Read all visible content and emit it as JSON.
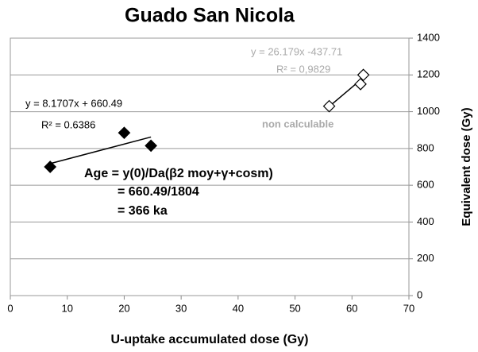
{
  "chart_data": {
    "type": "scatter",
    "title": "Guado San Nicola",
    "x_label": "U-uptake accumulated dose (Gy)",
    "y_label": "Equivalent dose (Gy)",
    "xlim": [
      0,
      70
    ],
    "xticks": [
      0,
      10,
      20,
      30,
      40,
      50,
      60,
      70
    ],
    "ylim": [
      0,
      1400
    ],
    "yticks": [
      0,
      200,
      400,
      600,
      800,
      1000,
      1200,
      1400
    ],
    "grid": true,
    "series": [
      {
        "color": "#000000",
        "filled": true,
        "x": [
          7,
          20,
          24.7
        ],
        "values": [
          700,
          885,
          815
        ]
      },
      {
        "color": "#000000",
        "filled": false,
        "x": [
          56,
          61.5,
          62
        ],
        "values": [
          1030,
          1150,
          1200
        ]
      }
    ],
    "trendlines": [
      {
        "color": "#000000",
        "x": [
          7,
          24.7
        ],
        "values": [
          717.7,
          862.3
        ]
      },
      {
        "color": "#000000",
        "x": [
          56,
          62
        ],
        "values": [
          1028.3,
          1185.4
        ]
      }
    ],
    "annotations": [
      "y = 8.1707x + 660.49",
      "R² = 0.6386",
      "y = 26.179x -437.71",
      "R² = 0,9829",
      "non calculable",
      "Age = y(0)/Da(β2 moy+γ+cosm)",
      "= 660.49/1804",
      "= 366 ka"
    ]
  }
}
